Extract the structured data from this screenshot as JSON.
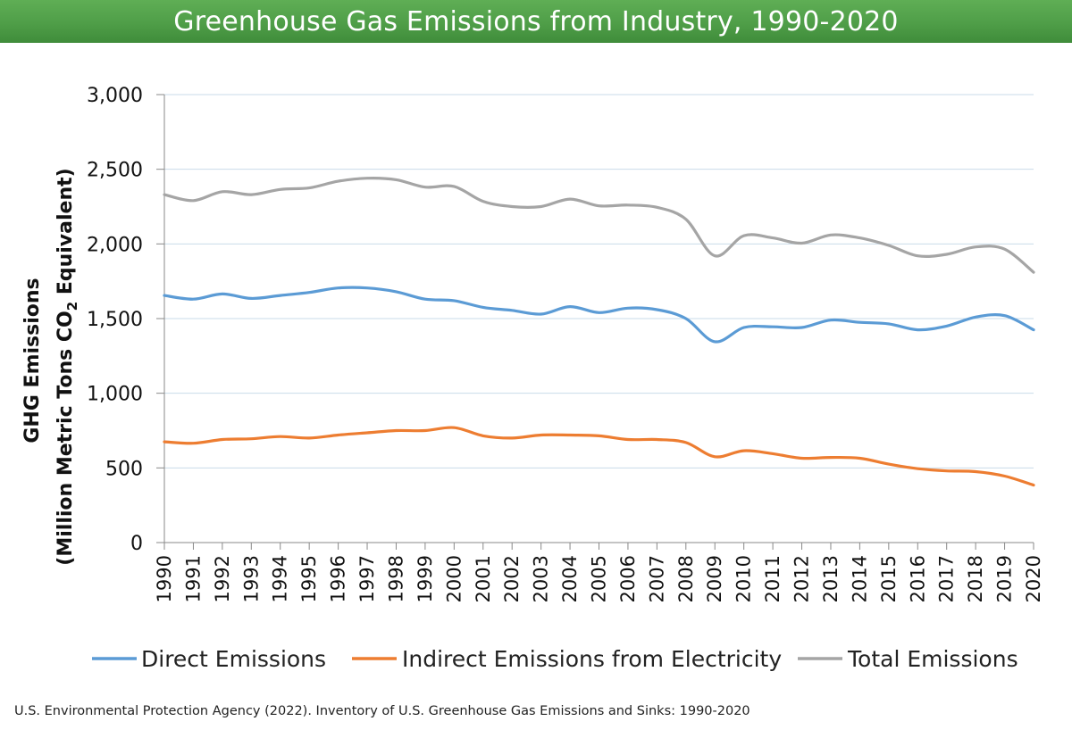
{
  "chart_data": {
    "type": "line",
    "title": "Greenhouse Gas Emissions from Industry, 1990-2020",
    "ylabel_line1": "GHG Emissions",
    "ylabel_line2_prefix": "(Million Metric Tons CO",
    "ylabel_line2_sub": "2",
    "ylabel_line2_suffix": " Equivalent)",
    "xlabel": "",
    "ylim": [
      0,
      3000
    ],
    "yticks": [
      0,
      500,
      1000,
      1500,
      2000,
      2500,
      3000
    ],
    "ytick_labels": [
      "0",
      "500",
      "1,000",
      "1,500",
      "2,000",
      "2,500",
      "3,000"
    ],
    "grid": true,
    "legend_position": "bottom",
    "x": [
      "1990",
      "1991",
      "1992",
      "1993",
      "1994",
      "1995",
      "1996",
      "1997",
      "1998",
      "1999",
      "2000",
      "2001",
      "2002",
      "2003",
      "2004",
      "2005",
      "2006",
      "2007",
      "2008",
      "2009",
      "2010",
      "2011",
      "2012",
      "2013",
      "2014",
      "2015",
      "2016",
      "2017",
      "2018",
      "2019",
      "2020"
    ],
    "series": [
      {
        "name": "Direct Emissions",
        "color": "#5b9bd5",
        "values": [
          1655,
          1630,
          1665,
          1635,
          1655,
          1675,
          1705,
          1705,
          1680,
          1630,
          1620,
          1575,
          1555,
          1530,
          1580,
          1540,
          1570,
          1560,
          1500,
          1345,
          1440,
          1445,
          1440,
          1490,
          1475,
          1465,
          1425,
          1450,
          1510,
          1520,
          1425
        ]
      },
      {
        "name": "Indirect Emissions from Electricity",
        "color": "#ed7d31",
        "values": [
          675,
          665,
          690,
          695,
          710,
          700,
          720,
          735,
          750,
          750,
          770,
          715,
          700,
          720,
          720,
          715,
          690,
          690,
          670,
          575,
          615,
          595,
          565,
          570,
          565,
          525,
          495,
          480,
          475,
          445,
          385
        ]
      },
      {
        "name": "Total Emissions",
        "color": "#a5a5a5",
        "values": [
          2330,
          2290,
          2350,
          2330,
          2365,
          2375,
          2420,
          2440,
          2430,
          2380,
          2385,
          2285,
          2250,
          2250,
          2300,
          2255,
          2260,
          2245,
          2165,
          1920,
          2055,
          2040,
          2005,
          2060,
          2040,
          1990,
          1920,
          1930,
          1980,
          1965,
          1810
        ]
      }
    ]
  },
  "source": "U.S. Environmental Protection Agency (2022). Inventory of U.S. Greenhouse Gas Emissions and Sinks: 1990-2020"
}
